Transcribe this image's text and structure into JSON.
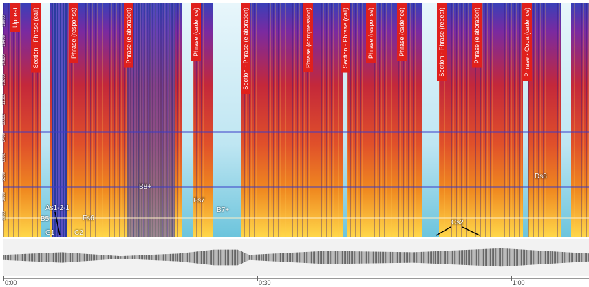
{
  "y_axis_labels": [
    "18000",
    "16400",
    "14800",
    "13200",
    "11600",
    "10000",
    "8400",
    "6800",
    "5200",
    "3600",
    "2000"
  ],
  "sections": [
    "Upbeat",
    "Section - Phrase (call)",
    "Phrase (response)",
    "Phrase (elaboration)",
    "Phrase (cadence)",
    "Section - Phrase (elaboration)",
    "Phrase (compression)",
    "Section - Phrase (call)",
    "Phrase (response)",
    "Phrase (cadence)",
    "Section - Phrase (repeat)",
    "Phrase (elaboration)",
    "Phrase - Coda (cadence)"
  ],
  "note_labels": [
    "B5",
    "As1-2-1",
    "G1",
    "C2",
    "Fs6",
    "B8+",
    "Fs7",
    "B7+",
    "Cs2",
    "Ds8"
  ],
  "time_labels": [
    "0:00",
    "0:30",
    "1:00"
  ]
}
